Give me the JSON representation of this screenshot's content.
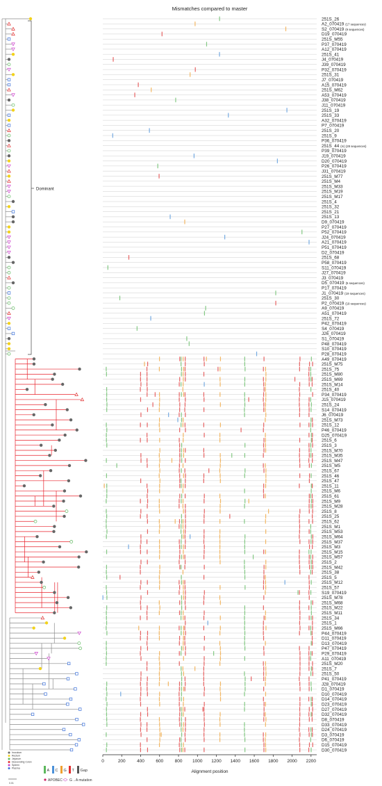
{
  "chart_data": {
    "type": "alignment-highlighter",
    "title": "Mismatches compared to master",
    "xlabel": "Alignment position",
    "xlim": [
      0,
      2260
    ],
    "x_ticks": [
      0,
      200,
      400,
      600,
      800,
      1000,
      1200,
      1400,
      1600,
      1800,
      2000,
      2200
    ],
    "dominant_label": "Dominant",
    "scale_label": "0.01",
    "sequences": [
      "251S_26",
      "A2_070419 (17 sequences)",
      "S2_070419 (9 sequences)",
      "D19_070419",
      "251S_M55",
      "P37_070419",
      "A12_070419",
      "251S_41",
      "J4_070419",
      "J39_070419",
      "P32_070419",
      "251S_31",
      "J7_070419",
      "A15_070419",
      "251S_M62",
      "A53_070419",
      "J38_070419",
      "J11_070419",
      "251S_19",
      "251S_33",
      "A32_070419",
      "P7_070419",
      "251S_20",
      "251S_9",
      "P36_070419",
      "251S_44 (m) (28 sequences)",
      "P39_070419",
      "J19_070419",
      "D20_070419",
      "P26_070419",
      "J31_070419",
      "251S_M77",
      "251S_M4",
      "251S_M33",
      "251S_M19",
      "251S_M17",
      "251S_4",
      "251S_32",
      "251S_21",
      "251S_13",
      "D9_070419",
      "P27_070419",
      "P52_070419",
      "J24_070419",
      "A21_070419",
      "P51_070419",
      "D2_070419",
      "251S_68",
      "P58_070419",
      "S11_070419",
      "J27_070419",
      "J3_070419",
      "D5_070419 (5 sequences)",
      "P17_070419",
      "J1_070419 (19 sequences)",
      "251S_30",
      "P2_070419 (19 sequences)",
      "A9_070419",
      "A51_070419",
      "251S_72",
      "P42_070419",
      "S4_070419",
      "J26_070419",
      "S1_070419",
      "P48_070419",
      "S10_070419",
      "P28_070419",
      "A49_070419",
      "251S_M75",
      "251S_75",
      "251S_M80",
      "251S_M69",
      "251S_M14",
      "251S_40",
      "P34_070419",
      "J15_070419",
      "251S_24",
      "S14_070419",
      "J6_070419",
      "251S_M73",
      "251S_12",
      "P46_070419",
      "D25_070419",
      "251S_6",
      "251S_3",
      "251S_M70",
      "251S_M35",
      "251S_M47",
      "251S_M5",
      "251S_67",
      "251S_46",
      "251S_47",
      "251S_11",
      "251S_M6",
      "251S_61",
      "251S_M9",
      "251S_M28",
      "251S_8",
      "251S_25",
      "251S_62",
      "251S_M1",
      "251S_M53",
      "251S_M64",
      "251S_M37",
      "251S_M3",
      "251S_M15",
      "251S_M57",
      "251S_2",
      "251S_M42",
      "251S_38",
      "251S_5",
      "251S_M12",
      "251S_57",
      "S19_070419",
      "251S_M78",
      "251S_M68",
      "251S_M22",
      "251S_M11",
      "251S_34",
      "251S_1",
      "251S_M66",
      "P44_070419",
      "D11_070419",
      "D13_070419",
      "P47_070419",
      "P29_070419",
      "A11_070419",
      "251S_M20",
      "251S_7",
      "251S_50",
      "P41_070419",
      "J28_070419",
      "D1_070419",
      "D10_070419",
      "D14_070419",
      "D23_070419",
      "D27_070419",
      "D32_070419",
      "D8_070419",
      "D33_070419",
      "D24_070419",
      "D3_070419",
      "D6_070419",
      "D15_070419",
      "D30_070419"
    ],
    "mismatch_legend": [
      {
        "label": "A",
        "color": "#5cb85c"
      },
      {
        "label": "C",
        "color": "#4a90d9"
      },
      {
        "label": "G",
        "color": "#f0a030"
      },
      {
        "label": "T",
        "color": "#e03030"
      },
      {
        "label": "Gap",
        "color": "#555555"
      }
    ],
    "mutation_legend": [
      {
        "label": "APOBEC",
        "color": "#cc2266"
      },
      {
        "label": "G→A mutation",
        "color": "#cc66cc"
      }
    ],
    "tissue_legend": [
      {
        "label": "Inoculum",
        "color": "#666666"
      },
      {
        "label": "Rectum",
        "color": "#f2d21b"
      },
      {
        "label": "Jejunum",
        "color": "#5cb85c"
      },
      {
        "label": "Descending Colon",
        "color": "#e03030"
      },
      {
        "label": "Spleen",
        "color": "#cc44cc"
      },
      {
        "label": "Plasma",
        "color": "#3a6fd8"
      }
    ],
    "tree_colors": {
      "red_clade": "#e8202a",
      "gray": "#8a8a8a"
    }
  }
}
